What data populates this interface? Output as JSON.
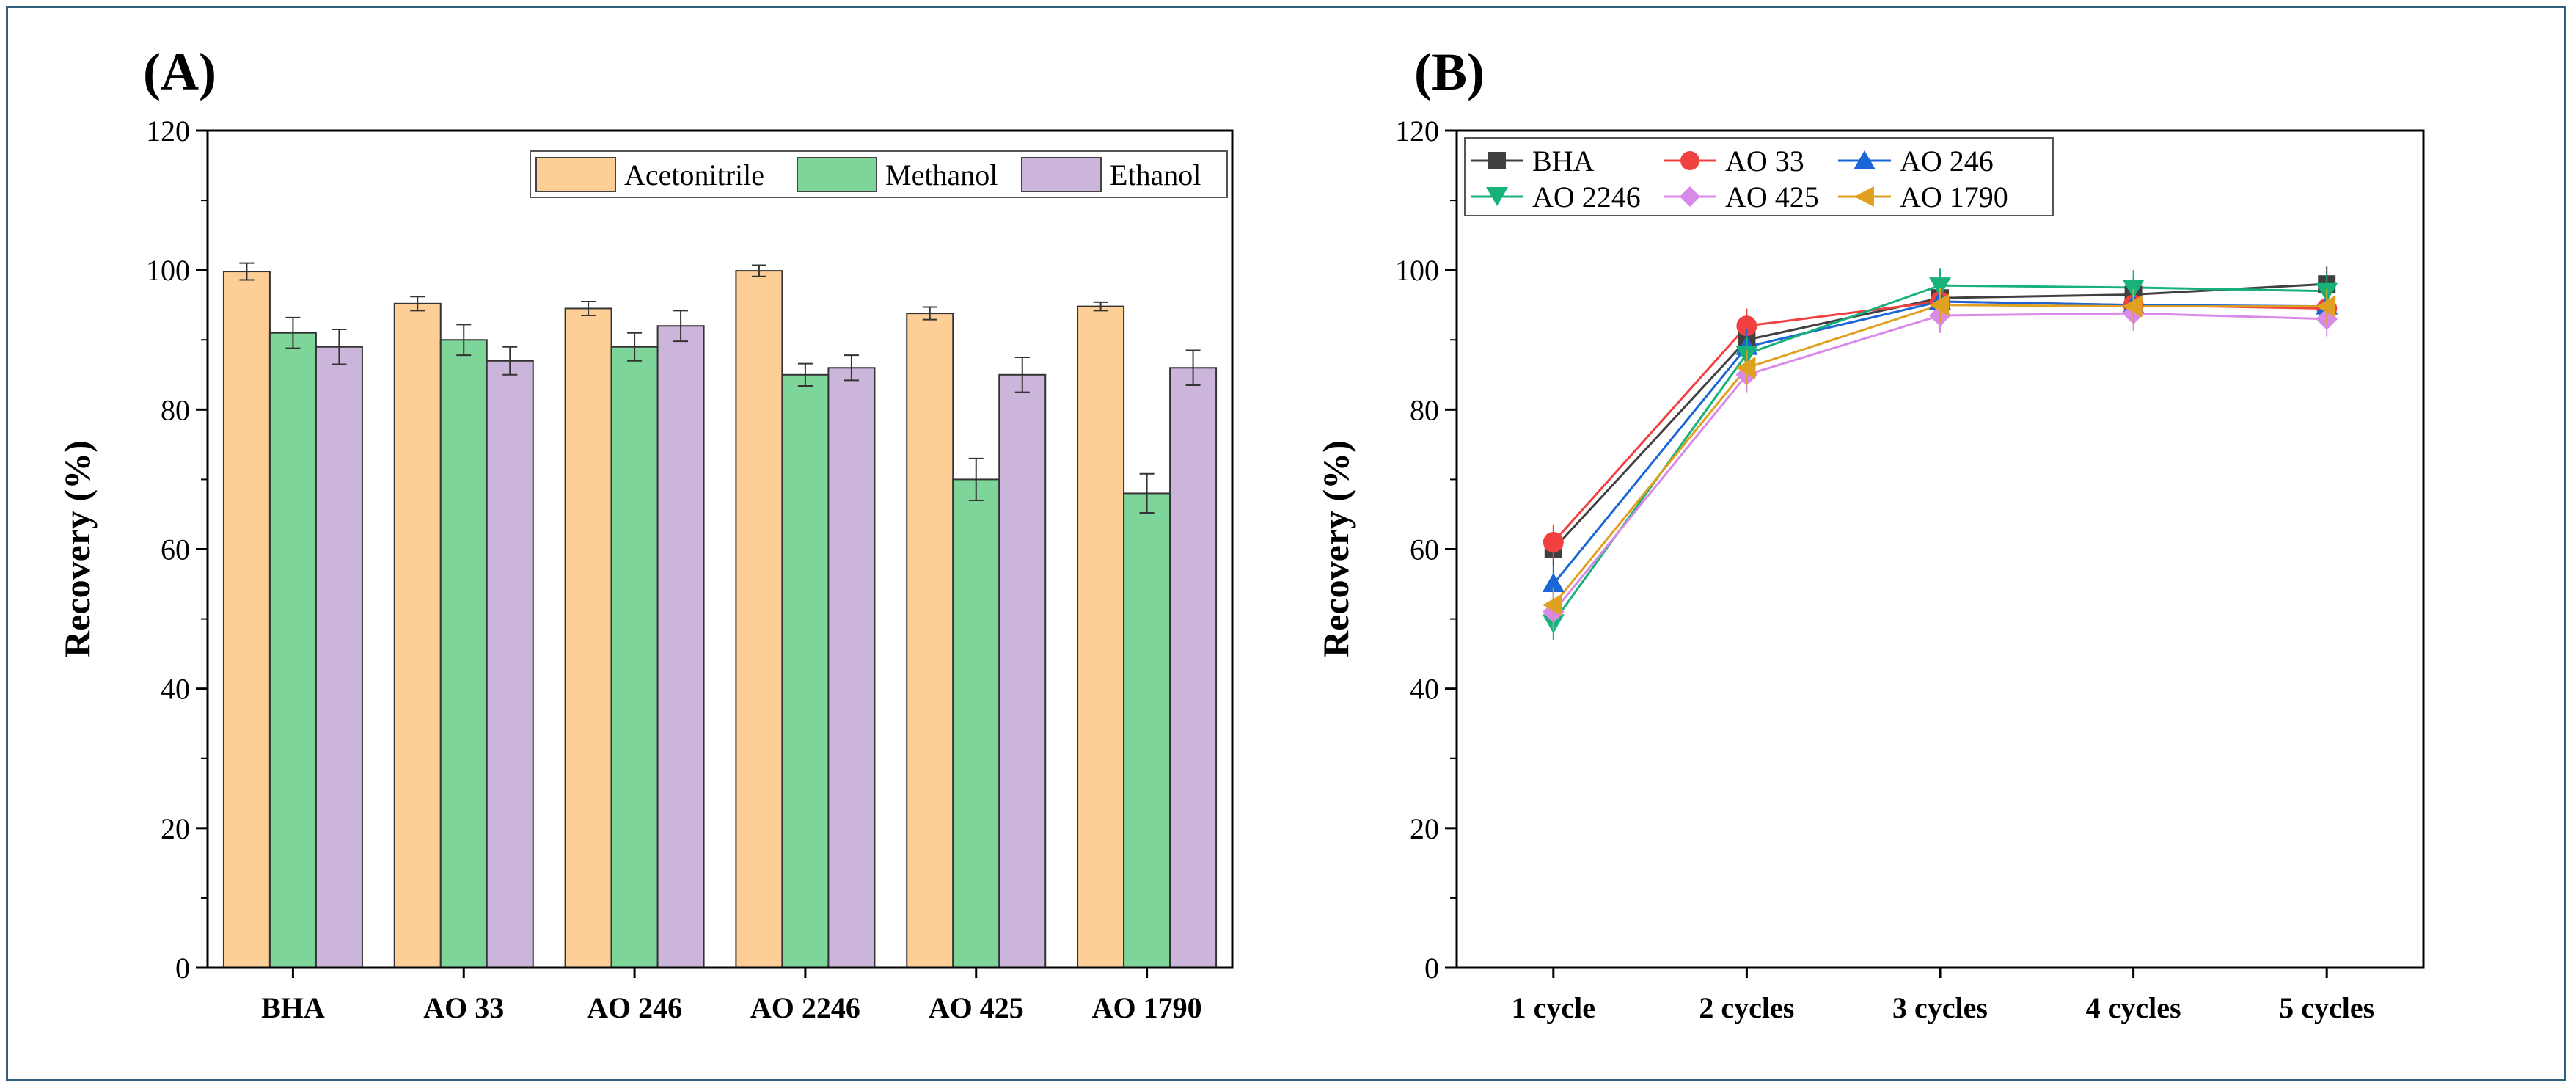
{
  "chart_data": [
    {
      "type": "bar",
      "panel_label": "(A)",
      "ylabel": "Recovery (%)",
      "xlabel": "",
      "ylim": [
        0,
        120
      ],
      "yticks": [
        0,
        20,
        40,
        60,
        80,
        100,
        120
      ],
      "categories": [
        "BHA",
        "AO 33",
        "AO 246",
        "AO 2246",
        "AO 425",
        "AO 1790"
      ],
      "legend_position": "top-right",
      "series": [
        {
          "name": "Acetonitrile",
          "color": "#fdcf96",
          "values": [
            99.8,
            95.2,
            94.5,
            99.9,
            93.8,
            94.8
          ],
          "errors": [
            1.2,
            1.0,
            1.0,
            0.8,
            0.9,
            0.6
          ]
        },
        {
          "name": "Methanol",
          "color": "#7dd59a",
          "values": [
            91.0,
            90.0,
            89.0,
            85.0,
            70.0,
            68.0
          ],
          "errors": [
            2.2,
            2.2,
            2.0,
            1.6,
            3.0,
            2.8
          ]
        },
        {
          "name": "Ethanol",
          "color": "#cbb5da",
          "values": [
            89.0,
            87.0,
            92.0,
            86.0,
            85.0,
            86.0
          ],
          "errors": [
            2.5,
            2.0,
            2.2,
            1.8,
            2.5,
            2.5
          ]
        }
      ]
    },
    {
      "type": "line",
      "panel_label": "(B)",
      "ylabel": "Recovery (%)",
      "xlabel": "",
      "ylim": [
        0,
        120
      ],
      "yticks": [
        0,
        20,
        40,
        60,
        80,
        100,
        120
      ],
      "categories": [
        "1 cycle",
        "2 cycles",
        "3 cycles",
        "4 cycles",
        "5 cycles"
      ],
      "legend_position": "top-left",
      "series": [
        {
          "name": "BHA",
          "color": "#404040",
          "marker": "square",
          "values": [
            60.0,
            90.0,
            96.0,
            96.5,
            98.0
          ]
        },
        {
          "name": "AO 33",
          "color": "#f04040",
          "marker": "circle",
          "values": [
            61.0,
            92.0,
            95.5,
            95.0,
            94.5
          ]
        },
        {
          "name": "AO 246",
          "color": "#1a66d6",
          "marker": "triangle-up",
          "values": [
            55.0,
            89.0,
            95.5,
            95.0,
            94.8
          ]
        },
        {
          "name": "AO 2246",
          "color": "#17b27a",
          "marker": "triangle-down",
          "values": [
            49.5,
            88.0,
            97.8,
            97.5,
            97.0
          ]
        },
        {
          "name": "AO 425",
          "color": "#d98ae8",
          "marker": "diamond",
          "values": [
            51.0,
            85.0,
            93.5,
            93.8,
            93.0
          ]
        },
        {
          "name": "AO 1790",
          "color": "#e0a020",
          "marker": "triangle-left",
          "values": [
            52.0,
            86.0,
            95.0,
            94.8,
            94.8
          ]
        }
      ]
    }
  ]
}
